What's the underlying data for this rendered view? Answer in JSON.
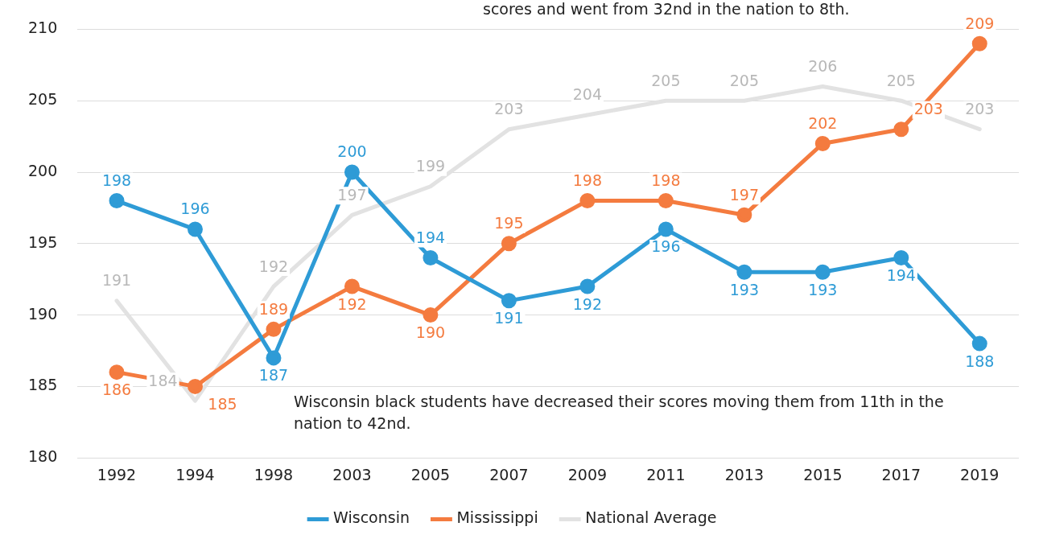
{
  "chart_data": {
    "type": "line",
    "categories": [
      "1992",
      "1994",
      "1998",
      "2003",
      "2005",
      "2007",
      "2009",
      "2011",
      "2013",
      "2015",
      "2017",
      "2019"
    ],
    "series": [
      {
        "name": "Wisconsin",
        "color": "#2e9bd6",
        "marker": "circle",
        "values": [
          198,
          196,
          187,
          200,
          194,
          191,
          192,
          196,
          193,
          193,
          194,
          188
        ]
      },
      {
        "name": "Mississippi",
        "color": "#f47b3f",
        "marker": "circle",
        "values": [
          186,
          185,
          189,
          192,
          190,
          195,
          198,
          198,
          197,
          202,
          203,
          209
        ]
      },
      {
        "name": "National Average",
        "color": "#e2e2e2",
        "marker": "none",
        "values": [
          191,
          184,
          192,
          197,
          199,
          203,
          204,
          205,
          205,
          206,
          205,
          203
        ]
      }
    ],
    "ylim": [
      180,
      210
    ],
    "yticks": [
      180,
      185,
      190,
      195,
      200,
      205,
      210
    ],
    "grid": "y",
    "legend": "bottom",
    "data_labels": true,
    "annotations": [
      "scores and went from 32nd in the nation to 8th.",
      "Wisconsin black students have decreased their scores moving them from 11th in the nation to 42nd."
    ]
  }
}
